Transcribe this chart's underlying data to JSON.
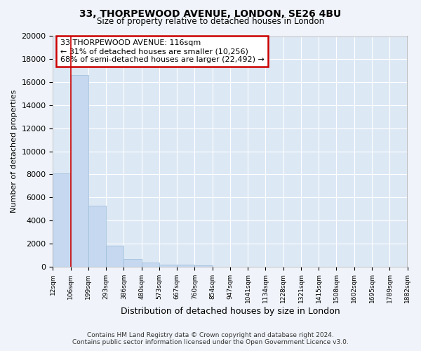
{
  "title1": "33, THORPEWOOD AVENUE, LONDON, SE26 4BU",
  "title2": "Size of property relative to detached houses in London",
  "xlabel": "Distribution of detached houses by size in London",
  "ylabel": "Number of detached properties",
  "bar_values": [
    8100,
    16600,
    5300,
    1800,
    650,
    330,
    180,
    130,
    110,
    0,
    0,
    0,
    0,
    0,
    0,
    0,
    0,
    0,
    0,
    0
  ],
  "bar_labels": [
    "12sqm",
    "106sqm",
    "199sqm",
    "293sqm",
    "386sqm",
    "480sqm",
    "573sqm",
    "667sqm",
    "760sqm",
    "854sqm",
    "947sqm",
    "1041sqm",
    "1134sqm",
    "1228sqm",
    "1321sqm",
    "1415sqm",
    "1508sqm",
    "1602sqm",
    "1695sqm",
    "1789sqm",
    "1882sqm"
  ],
  "bar_color": "#c5d8f0",
  "bar_edge_color": "#9bbcd8",
  "property_line_x": 1,
  "ylim": [
    0,
    20000
  ],
  "yticks": [
    0,
    2000,
    4000,
    6000,
    8000,
    10000,
    12000,
    14000,
    16000,
    18000,
    20000
  ],
  "annotation_box_text": "33 THORPEWOOD AVENUE: 116sqm\n← 31% of detached houses are smaller (10,256)\n68% of semi-detached houses are larger (22,492) →",
  "annotation_box_color": "#cc0000",
  "footer_line1": "Contains HM Land Registry data © Crown copyright and database right 2024.",
  "footer_line2": "Contains public sector information licensed under the Open Government Licence v3.0.",
  "bg_color": "#f0f4fa",
  "plot_bg_color": "#dde8f5"
}
